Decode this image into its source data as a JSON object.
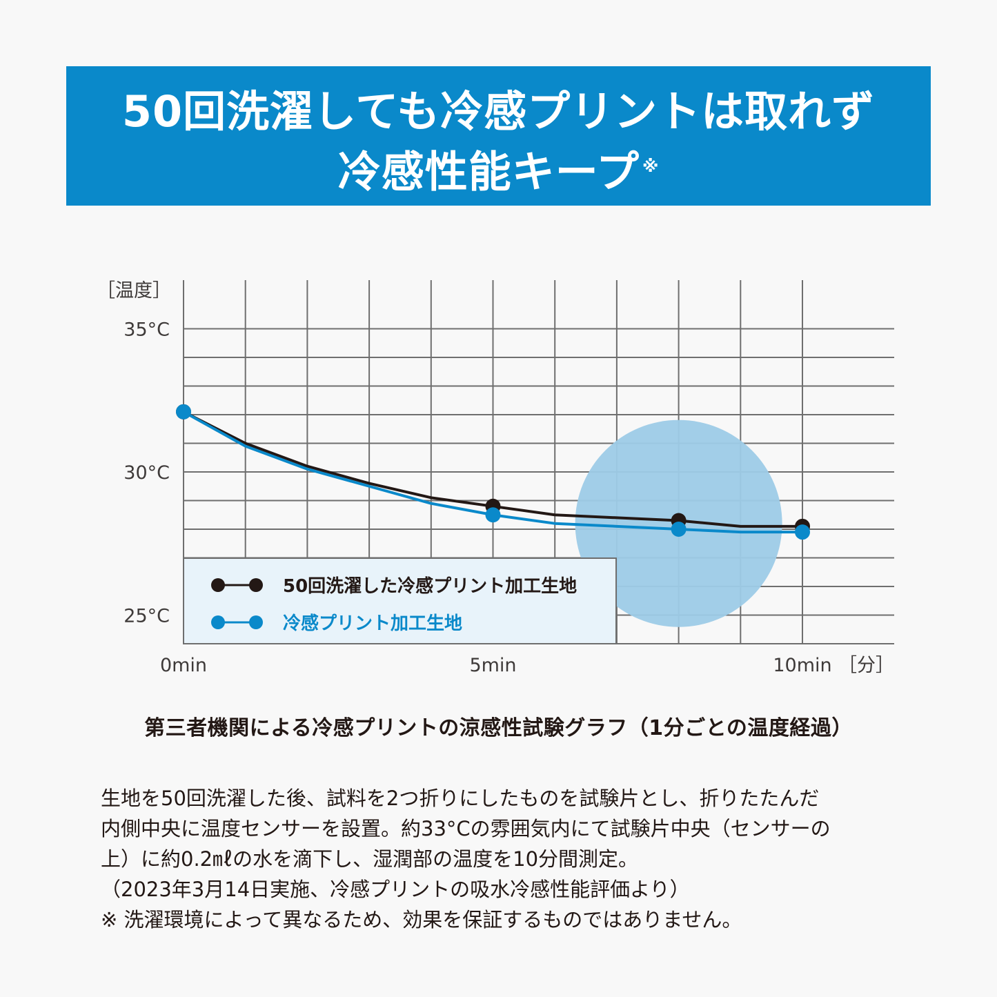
{
  "header": {
    "title_line1": "50回洗濯しても冷感プリントは取れず",
    "title_line2": "冷感性能キープ",
    "title_note_mark": "※",
    "bg_color": "#0a89ca"
  },
  "chart_data": {
    "type": "line",
    "x": [
      0,
      1,
      2,
      3,
      4,
      5,
      6,
      7,
      8,
      9,
      10
    ],
    "x_tick_labels": [
      {
        "x": 0,
        "label": "0min"
      },
      {
        "x": 5,
        "label": "5min"
      },
      {
        "x": 10,
        "label": "10min"
      }
    ],
    "x_unit_label": "［分］",
    "y_unit_label": "［温度］",
    "y_tick_labels": [
      {
        "y": 35,
        "label": "35°C"
      },
      {
        "y": 30,
        "label": "30°C"
      },
      {
        "y": 25,
        "label": "25°C"
      }
    ],
    "xlim": [
      0,
      11.5
    ],
    "ylim": [
      24,
      36.7
    ],
    "grid": true,
    "series": [
      {
        "name": "50回洗濯した冷感プリント加工生地",
        "color": "#231815",
        "values": [
          32.1,
          31.0,
          30.2,
          29.6,
          29.1,
          28.8,
          28.5,
          28.4,
          28.3,
          28.1,
          28.1
        ],
        "marker_x": [
          0,
          5,
          8,
          10
        ]
      },
      {
        "name": "冷感プリント加工生地",
        "color": "#0a89ca",
        "values": [
          32.1,
          30.9,
          30.1,
          29.5,
          28.9,
          28.5,
          28.2,
          28.1,
          28.0,
          27.9,
          27.9
        ],
        "marker_x": [
          0,
          5,
          8,
          10
        ]
      }
    ],
    "highlight": {
      "x": 8,
      "y": 28.2,
      "color": "#9dcbe7"
    },
    "legend_position": "bottom-left",
    "legend_bg": "#e8f3fa"
  },
  "caption": "第三者機関による冷感プリントの涼感性試験グラフ（1分ごとの温度経過）",
  "description": [
    "生地を50回洗濯した後、試料を2つ折りにしたものを試験片とし、折りたたんだ",
    "内側中央に温度センサーを設置。約33°Cの雰囲気内にて試験片中央（センサーの",
    "上）に約0.2㎖の水を滴下し、湿潤部の温度を10分間測定。",
    "（2023年3月14日実施、冷感プリントの吸水冷感性能評価より）",
    "※ 洗濯環境によって異なるため、効果を保証するものではありません。"
  ]
}
